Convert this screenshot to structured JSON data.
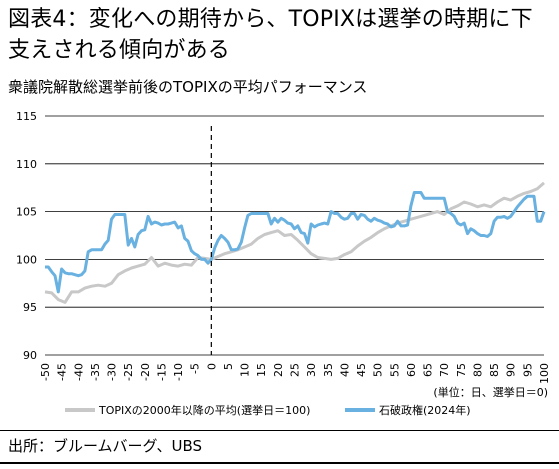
{
  "title": "図表4：変化への期待から、TOPIXは選挙の時期に下支えされる傾向がある",
  "subtitle": "衆議院解散総選挙前後のTOPIXの平均パフォーマンス",
  "unit_note": "(単位：日、選挙日＝0)",
  "source": "出所：ブルームバーグ、UBS",
  "colors": {
    "gray": "#c8c8c8",
    "blue": "#69b1e0",
    "grid": "#000000",
    "vline": "#000000"
  },
  "chart_data": {
    "type": "line",
    "ylim": [
      90,
      115
    ],
    "xlim": [
      -50,
      100
    ],
    "yticks": [
      90,
      95,
      100,
      105,
      110,
      115
    ],
    "xticks": [
      -50,
      -45,
      -40,
      -35,
      -30,
      -25,
      -20,
      -15,
      -10,
      -5,
      0,
      5,
      10,
      15,
      20,
      25,
      30,
      35,
      40,
      45,
      50,
      55,
      60,
      65,
      70,
      75,
      80,
      85,
      90,
      95,
      100
    ],
    "grid": "horizontal",
    "vertical_marker": {
      "x": 0,
      "style": "dashed"
    },
    "legend": {
      "position": "bottom"
    },
    "series": [
      {
        "name": "TOPIXの2000年以降の平均(選挙日＝100)",
        "color": "#c8c8c8",
        "points": [
          [
            -50,
            96.6
          ],
          [
            -48,
            96.5
          ],
          [
            -46,
            95.8
          ],
          [
            -44,
            95.5
          ],
          [
            -42,
            96.6
          ],
          [
            -40,
            96.6
          ],
          [
            -38,
            97.0
          ],
          [
            -36,
            97.2
          ],
          [
            -34,
            97.3
          ],
          [
            -32,
            97.2
          ],
          [
            -30,
            97.5
          ],
          [
            -28,
            98.4
          ],
          [
            -26,
            98.8
          ],
          [
            -24,
            99.1
          ],
          [
            -22,
            99.3
          ],
          [
            -20,
            99.5
          ],
          [
            -18,
            100.2
          ],
          [
            -16,
            99.3
          ],
          [
            -14,
            99.6
          ],
          [
            -12,
            99.4
          ],
          [
            -10,
            99.3
          ],
          [
            -8,
            99.5
          ],
          [
            -6,
            99.4
          ],
          [
            -4,
            100.2
          ],
          [
            -2,
            100.1
          ],
          [
            0,
            100.0
          ],
          [
            2,
            100.3
          ],
          [
            4,
            100.6
          ],
          [
            6,
            100.8
          ],
          [
            8,
            101.0
          ],
          [
            10,
            101.3
          ],
          [
            12,
            101.6
          ],
          [
            14,
            102.2
          ],
          [
            16,
            102.6
          ],
          [
            18,
            102.8
          ],
          [
            20,
            103.0
          ],
          [
            22,
            102.5
          ],
          [
            24,
            102.6
          ],
          [
            26,
            102.0
          ],
          [
            28,
            101.3
          ],
          [
            30,
            100.6
          ],
          [
            32,
            100.2
          ],
          [
            34,
            100.1
          ],
          [
            36,
            100.0
          ],
          [
            38,
            100.1
          ],
          [
            40,
            100.5
          ],
          [
            42,
            100.8
          ],
          [
            44,
            101.4
          ],
          [
            46,
            101.9
          ],
          [
            48,
            102.3
          ],
          [
            50,
            102.8
          ],
          [
            52,
            103.2
          ],
          [
            54,
            103.5
          ],
          [
            56,
            103.8
          ],
          [
            58,
            104.0
          ],
          [
            60,
            104.2
          ],
          [
            62,
            104.4
          ],
          [
            64,
            104.6
          ],
          [
            66,
            104.8
          ],
          [
            68,
            105.0
          ],
          [
            70,
            104.7
          ],
          [
            72,
            105.3
          ],
          [
            74,
            105.6
          ],
          [
            76,
            106.0
          ],
          [
            78,
            105.8
          ],
          [
            80,
            105.5
          ],
          [
            82,
            105.7
          ],
          [
            84,
            105.5
          ],
          [
            86,
            106.0
          ],
          [
            88,
            106.4
          ],
          [
            90,
            106.2
          ],
          [
            92,
            106.6
          ],
          [
            94,
            106.9
          ],
          [
            96,
            107.1
          ],
          [
            98,
            107.4
          ],
          [
            100,
            108.0
          ]
        ]
      },
      {
        "name": "石破政権(2024年)",
        "color": "#69b1e0",
        "points": [
          [
            -50,
            99.2
          ],
          [
            -49,
            99.2
          ],
          [
            -48,
            98.7
          ],
          [
            -47,
            98.3
          ],
          [
            -46,
            96.6
          ],
          [
            -45,
            99.0
          ],
          [
            -44,
            98.6
          ],
          [
            -43,
            98.5
          ],
          [
            -42,
            98.5
          ],
          [
            -41,
            98.4
          ],
          [
            -40,
            98.3
          ],
          [
            -39,
            98.4
          ],
          [
            -38,
            98.8
          ],
          [
            -37,
            100.8
          ],
          [
            -36,
            101.0
          ],
          [
            -35,
            101.0
          ],
          [
            -34,
            101.0
          ],
          [
            -33,
            101.0
          ],
          [
            -32,
            101.6
          ],
          [
            -31,
            102.0
          ],
          [
            -30,
            104.2
          ],
          [
            -29,
            104.7
          ],
          [
            -28,
            104.7
          ],
          [
            -27,
            104.7
          ],
          [
            -26,
            104.7
          ],
          [
            -25,
            101.5
          ],
          [
            -24,
            102.2
          ],
          [
            -23,
            101.3
          ],
          [
            -22,
            102.6
          ],
          [
            -21,
            103.0
          ],
          [
            -20,
            103.1
          ],
          [
            -19,
            104.5
          ],
          [
            -18,
            103.7
          ],
          [
            -17,
            103.9
          ],
          [
            -16,
            103.8
          ],
          [
            -15,
            103.6
          ],
          [
            -14,
            103.7
          ],
          [
            -13,
            103.7
          ],
          [
            -12,
            103.8
          ],
          [
            -11,
            103.9
          ],
          [
            -10,
            103.3
          ],
          [
            -9,
            103.5
          ],
          [
            -8,
            102.2
          ],
          [
            -7,
            101.9
          ],
          [
            -6,
            100.9
          ],
          [
            -5,
            100.6
          ],
          [
            -4,
            100.4
          ],
          [
            -3,
            100.0
          ],
          [
            -2,
            100.0
          ],
          [
            -1,
            99.6
          ],
          [
            0,
            100.0
          ],
          [
            1,
            101.2
          ],
          [
            2,
            102.0
          ],
          [
            3,
            102.5
          ],
          [
            4,
            102.2
          ],
          [
            5,
            101.8
          ],
          [
            6,
            101.0
          ],
          [
            7,
            101.0
          ],
          [
            8,
            101.1
          ],
          [
            9,
            101.8
          ],
          [
            10,
            103.3
          ],
          [
            11,
            104.6
          ],
          [
            12,
            104.8
          ],
          [
            13,
            104.8
          ],
          [
            14,
            104.8
          ],
          [
            15,
            104.8
          ],
          [
            16,
            104.8
          ],
          [
            17,
            104.8
          ],
          [
            18,
            103.7
          ],
          [
            19,
            104.3
          ],
          [
            20,
            103.9
          ],
          [
            21,
            104.3
          ],
          [
            22,
            104.1
          ],
          [
            23,
            103.8
          ],
          [
            24,
            103.7
          ],
          [
            25,
            103.2
          ],
          [
            26,
            103.5
          ],
          [
            27,
            102.8
          ],
          [
            28,
            102.7
          ],
          [
            29,
            101.7
          ],
          [
            30,
            103.7
          ],
          [
            31,
            103.4
          ],
          [
            32,
            103.6
          ],
          [
            33,
            103.7
          ],
          [
            34,
            103.8
          ],
          [
            35,
            103.7
          ],
          [
            36,
            105.0
          ],
          [
            37,
            104.8
          ],
          [
            38,
            104.8
          ],
          [
            39,
            104.4
          ],
          [
            40,
            104.2
          ],
          [
            41,
            104.3
          ],
          [
            42,
            104.8
          ],
          [
            43,
            104.8
          ],
          [
            44,
            104.2
          ],
          [
            45,
            104.7
          ],
          [
            46,
            104.6
          ],
          [
            47,
            104.2
          ],
          [
            48,
            104.0
          ],
          [
            49,
            104.3
          ],
          [
            50,
            104.1
          ],
          [
            51,
            104.0
          ],
          [
            52,
            103.8
          ],
          [
            53,
            103.7
          ],
          [
            54,
            103.4
          ],
          [
            55,
            103.5
          ],
          [
            56,
            104.0
          ],
          [
            57,
            103.5
          ],
          [
            58,
            103.5
          ],
          [
            59,
            103.6
          ],
          [
            60,
            105.6
          ],
          [
            61,
            107.0
          ],
          [
            62,
            107.0
          ],
          [
            63,
            107.0
          ],
          [
            64,
            106.4
          ],
          [
            65,
            106.4
          ],
          [
            66,
            106.4
          ],
          [
            67,
            106.4
          ],
          [
            68,
            106.4
          ],
          [
            69,
            106.4
          ],
          [
            70,
            106.4
          ],
          [
            71,
            105.0
          ],
          [
            72,
            104.8
          ],
          [
            73,
            104.5
          ],
          [
            74,
            103.8
          ],
          [
            75,
            103.6
          ],
          [
            76,
            103.8
          ],
          [
            77,
            102.7
          ],
          [
            78,
            103.2
          ],
          [
            79,
            103.0
          ],
          [
            80,
            102.7
          ],
          [
            81,
            102.5
          ],
          [
            82,
            102.5
          ],
          [
            83,
            102.4
          ],
          [
            84,
            102.7
          ],
          [
            85,
            104.0
          ],
          [
            86,
            104.4
          ],
          [
            87,
            104.4
          ],
          [
            88,
            104.5
          ],
          [
            89,
            104.3
          ],
          [
            90,
            104.5
          ],
          [
            91,
            105.0
          ],
          [
            92,
            105.5
          ],
          [
            93,
            105.9
          ],
          [
            94,
            106.3
          ],
          [
            95,
            106.6
          ],
          [
            96,
            106.6
          ],
          [
            97,
            106.6
          ],
          [
            98,
            104.0
          ],
          [
            99,
            104.0
          ],
          [
            100,
            105.0
          ]
        ]
      }
    ]
  }
}
